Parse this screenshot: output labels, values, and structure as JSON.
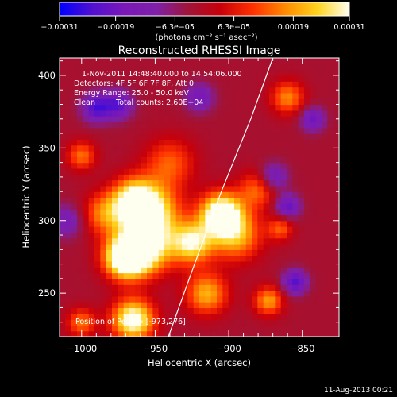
{
  "chart_data": {
    "type": "heatmap",
    "title": "Reconstructed RHESSI Image",
    "xlabel": "Heliocentric X (arcsec)",
    "ylabel": "Heliocentric Y (arcsec)",
    "xlim": [
      -1015,
      -825
    ],
    "ylim": [
      220,
      412
    ],
    "x_ticks": [
      -1000,
      -950,
      -900,
      -850
    ],
    "x_tick_labels": [
      "−1000",
      "−950",
      "−900",
      "−850"
    ],
    "y_ticks": [
      250,
      300,
      350,
      400
    ],
    "y_tick_labels": [
      "250",
      "300",
      "350",
      "400"
    ],
    "colorbar": {
      "range": [
        -0.00031,
        0.00031
      ],
      "ticks": [
        -0.00031,
        -0.00019,
        -6.3e-05,
        6.3e-05,
        0.00019,
        0.00031
      ],
      "tick_labels": [
        "−0.00031",
        "−0.00019",
        "−6.3e−05",
        "6.3e−05",
        "0.00019",
        "0.00031"
      ],
      "units": "(photons cm⁻² s⁻¹ asec⁻²)",
      "palette": [
        "#0000ff",
        "#5010d0",
        "#7a18b8",
        "#7e20a8",
        "#a01438",
        "#c8000a",
        "#ff3000",
        "#ff8a00",
        "#ffd21c",
        "#fffff0"
      ]
    },
    "annotations": [
      "1-Nov-2011 14:48:40.000 to 14:54:06.000",
      "Detectors: 4F 5F 6F 7F 8F, Att 0",
      "Energy Range: 25.0 - 50.0 keV",
      "Clean",
      "Total counts: 2.60E+04",
      "Position of Peak = [-973,276]"
    ],
    "peak": {
      "x": -973,
      "y": 276
    },
    "sources": [
      {
        "x": -955,
        "y": 305,
        "sigma": 14,
        "amp": 1.0
      },
      {
        "x": -965,
        "y": 315,
        "sigma": 10,
        "amp": 0.6
      },
      {
        "x": -970,
        "y": 275,
        "sigma": 10,
        "amp": 1.2
      },
      {
        "x": -955,
        "y": 280,
        "sigma": 12,
        "amp": 0.7
      },
      {
        "x": -925,
        "y": 285,
        "sigma": 10,
        "amp": 0.8
      },
      {
        "x": -905,
        "y": 305,
        "sigma": 10,
        "amp": 1.05
      },
      {
        "x": -895,
        "y": 290,
        "sigma": 12,
        "amp": 0.6
      },
      {
        "x": -965,
        "y": 232,
        "sigma": 10,
        "amp": 0.95
      },
      {
        "x": -915,
        "y": 250,
        "sigma": 10,
        "amp": 0.6
      },
      {
        "x": -985,
        "y": 305,
        "sigma": 10,
        "amp": 0.45
      },
      {
        "x": -880,
        "y": 322,
        "sigma": 9,
        "amp": 0.45
      },
      {
        "x": -873,
        "y": 245,
        "sigma": 7,
        "amp": 0.55
      },
      {
        "x": -1000,
        "y": 345,
        "sigma": 7,
        "amp": 0.45
      },
      {
        "x": -940,
        "y": 340,
        "sigma": 12,
        "amp": 0.4
      },
      {
        "x": -860,
        "y": 385,
        "sigma": 8,
        "amp": 0.5
      },
      {
        "x": -1000,
        "y": 230,
        "sigma": 7,
        "amp": 0.45
      },
      {
        "x": -865,
        "y": 295,
        "sigma": 6,
        "amp": 0.4
      },
      {
        "x": -990,
        "y": 378,
        "sigma": 7,
        "amp": -0.55
      },
      {
        "x": -975,
        "y": 380,
        "sigma": 7,
        "amp": -0.5
      },
      {
        "x": -920,
        "y": 385,
        "sigma": 7,
        "amp": -0.4
      },
      {
        "x": -870,
        "y": 330,
        "sigma": 7,
        "amp": -0.45
      },
      {
        "x": -860,
        "y": 310,
        "sigma": 6,
        "amp": -0.5
      },
      {
        "x": -855,
        "y": 258,
        "sigma": 6,
        "amp": -0.55
      },
      {
        "x": -843,
        "y": 370,
        "sigma": 6,
        "amp": -0.45
      },
      {
        "x": -1010,
        "y": 300,
        "sigma": 8,
        "amp": -0.35
      }
    ],
    "limb_curve": {
      "x": [
        -941,
        -925,
        -905,
        -885,
        -870
      ],
      "y": [
        220,
        265,
        320,
        370,
        412
      ]
    }
  },
  "footer_timestamp": "11-Aug-2013 00:21"
}
